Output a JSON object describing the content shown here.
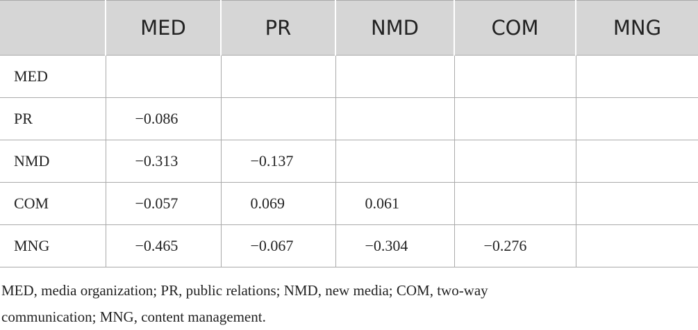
{
  "table": {
    "header": [
      "MED",
      "PR",
      "NMD",
      "COM",
      "MNG"
    ],
    "rows": [
      {
        "label": "MED",
        "cells": []
      },
      {
        "label": "PR",
        "cells": [
          "−0.086"
        ]
      },
      {
        "label": "NMD",
        "cells": [
          "−0.313",
          "−0.137"
        ]
      },
      {
        "label": "COM",
        "cells": [
          "−0.057",
          "0.069",
          "0.061"
        ]
      },
      {
        "label": "MNG",
        "cells": [
          "−0.465",
          "−0.067",
          "−0.304",
          "−0.276"
        ]
      }
    ]
  },
  "footnote": [
    "MED, media organization; PR, public relations; NMD, new media; COM, two-way",
    "communication; MNG, content management."
  ]
}
